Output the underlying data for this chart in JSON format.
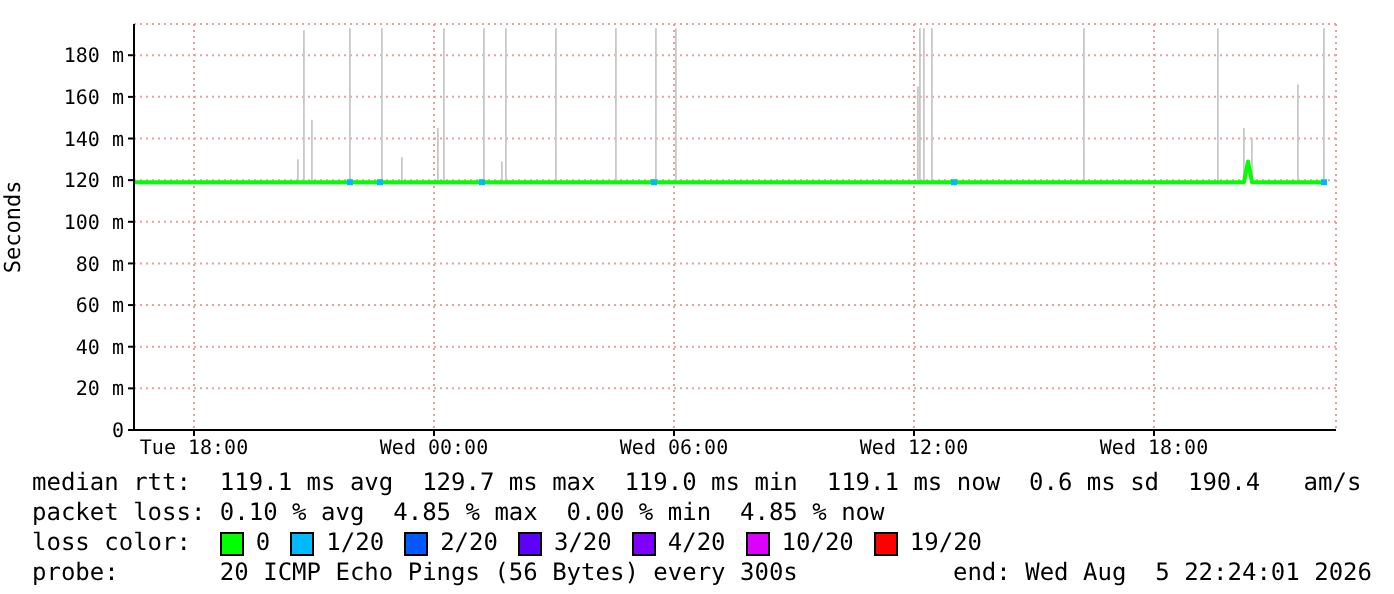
{
  "chart_data": {
    "type": "line",
    "ylabel": "Seconds",
    "legend_title": "loss color:",
    "legend": "bottom",
    "grid": true,
    "marker": "none",
    "xlim": [
      "2026-08-04T16:30",
      "2026-08-05T22:33"
    ],
    "xticks": [
      {
        "value": "2026-08-04T18:00",
        "label": "Tue 18:00"
      },
      {
        "value": "2026-08-05T00:00",
        "label": "Wed 00:00"
      },
      {
        "value": "2026-08-05T06:00",
        "label": "Wed 06:00"
      },
      {
        "value": "2026-08-05T12:00",
        "label": "Wed 12:00"
      },
      {
        "value": "2026-08-05T18:00",
        "label": "Wed 18:00"
      }
    ],
    "ylim": [
      0,
      195
    ],
    "yticks": [
      0,
      {
        "value": 20,
        "label": "20 m"
      },
      {
        "value": 40,
        "label": "40 m"
      },
      {
        "value": 60,
        "label": "60 m"
      },
      {
        "value": 80,
        "label": "80 m"
      },
      {
        "value": 100,
        "label": "100 m"
      },
      {
        "value": 120,
        "label": "120 m"
      },
      {
        "value": 140,
        "label": "140 m"
      },
      {
        "value": 160,
        "label": "160 m"
      },
      {
        "value": 180,
        "label": "180 m"
      }
    ],
    "series": [
      {
        "type": "bar",
        "color": "#c8c8c8",
        "x": [
          "2026-08-04T20:36",
          "2026-08-04T20:45",
          "2026-08-04T20:57",
          "2026-08-04T21:54",
          "2026-08-04T22:42",
          "2026-08-04T23:12",
          "2026-08-05T00:06",
          "2026-08-05T00:15",
          "2026-08-05T01:15",
          "2026-08-05T01:42",
          "2026-08-05T01:48",
          "2026-08-05T03:03",
          "2026-08-05T04:33",
          "2026-08-05T05:33",
          "2026-08-05T06:03",
          "2026-08-05T12:06",
          "2026-08-05T12:09",
          "2026-08-05T12:15",
          "2026-08-05T12:27",
          "2026-08-05T16:15",
          "2026-08-05T19:36",
          "2026-08-05T20:15",
          "2026-08-05T20:27",
          "2026-08-05T21:36",
          "2026-08-05T22:15"
        ],
        "base": [
          119,
          119,
          119,
          119,
          119,
          119,
          119,
          119,
          119,
          119,
          119,
          119,
          119,
          119,
          119,
          119,
          119,
          119,
          119,
          119,
          119,
          119,
          119,
          119,
          119
        ],
        "values": [
          11,
          73,
          30,
          74,
          74,
          12,
          26,
          74,
          74,
          10,
          74,
          74,
          74,
          74,
          74,
          46,
          74,
          74,
          74,
          74,
          74,
          26,
          21,
          47,
          74
        ]
      },
      {
        "name": "0",
        "color": "#00ff00",
        "x": [
          "2026-08-04T16:30",
          "2026-08-04T18:00",
          "2026-08-04T19:30",
          "2026-08-04T21:00",
          "2026-08-04T22:30",
          "2026-08-05T00:00",
          "2026-08-05T01:30",
          "2026-08-05T03:00",
          "2026-08-05T04:30",
          "2026-08-05T06:00",
          "2026-08-05T07:30",
          "2026-08-05T09:00",
          "2026-08-05T10:30",
          "2026-08-05T12:00",
          "2026-08-05T13:30",
          "2026-08-05T15:00",
          "2026-08-05T16:30",
          "2026-08-05T18:00",
          "2026-08-05T19:30",
          "2026-08-05T20:15",
          "2026-08-05T20:21",
          "2026-08-05T20:27",
          "2026-08-05T21:00",
          "2026-08-05T22:15"
        ],
        "values": [
          119,
          119,
          119,
          119,
          119,
          119,
          119,
          119,
          119,
          119,
          119,
          119,
          119,
          119,
          119,
          119,
          119,
          119,
          119,
          119,
          129,
          119,
          119,
          119
        ]
      },
      {
        "name": "1/20",
        "type": "scatter",
        "marker": "square",
        "color": "#00b8ff",
        "x": [
          "2026-08-04T21:54",
          "2026-08-04T22:39",
          "2026-08-05T01:12",
          "2026-08-05T05:30",
          "2026-08-05T13:00",
          "2026-08-05T22:15"
        ],
        "values": [
          119,
          119,
          119,
          119,
          119,
          119
        ]
      },
      {
        "name": "2/20",
        "type": "scatter",
        "marker": "square",
        "color": "#0059ff"
      },
      {
        "name": "3/20",
        "type": "scatter",
        "marker": "square",
        "color": "#5e00ff"
      },
      {
        "name": "4/20",
        "type": "scatter",
        "marker": "square",
        "color": "#7e00ff"
      },
      {
        "name": "10/20",
        "type": "scatter",
        "marker": "square",
        "color": "#dd00ff"
      },
      {
        "name": "19/20",
        "type": "scatter",
        "marker": "square",
        "color": "#ff0000"
      }
    ],
    "annotations": [
      "median rtt:  119.1 ms avg  129.7 ms max  119.0 ms min  119.1 ms now  0.6 ms sd  190.4   am/s",
      "packet loss: 0.10 % avg  4.85 % max  0.00 % min  4.85 % now",
      "probe:       20 ICMP Echo Pings (56 Bytes) every 300s",
      "end: Wed Aug  5 22:24:01 2026"
    ]
  }
}
